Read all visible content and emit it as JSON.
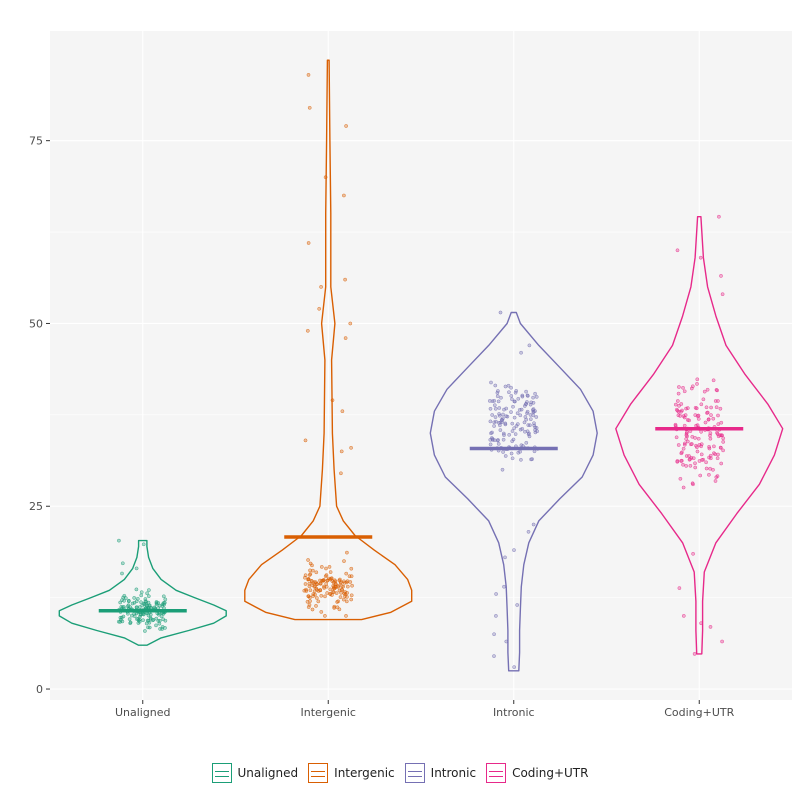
{
  "chart_data": {
    "type": "violin",
    "categories": [
      "Unaligned",
      "Intergenic",
      "Intronic",
      "Coding+UTR"
    ],
    "colors": [
      "#1b9e77",
      "#d95f02",
      "#7570b3",
      "#e7298a"
    ],
    "yticks": [
      0,
      25,
      50,
      75
    ],
    "ylim": [
      -1.5,
      90
    ],
    "series": [
      {
        "name": "Unaligned",
        "median": 10.7,
        "min": 6.0,
        "max": 20.3,
        "density": [
          [
            6.0,
            0.05
          ],
          [
            7.0,
            0.22
          ],
          [
            8.0,
            0.55
          ],
          [
            9.0,
            0.85
          ],
          [
            10.0,
            1.0
          ],
          [
            10.7,
            1.0
          ],
          [
            11.5,
            0.85
          ],
          [
            12.5,
            0.62
          ],
          [
            13.5,
            0.4
          ],
          [
            15.0,
            0.22
          ],
          [
            16.5,
            0.12
          ],
          [
            18.0,
            0.07
          ],
          [
            19.5,
            0.05
          ],
          [
            20.3,
            0.05
          ]
        ]
      },
      {
        "name": "Intergenic",
        "median": 20.8,
        "min": 9.5,
        "max": 86.0,
        "density": [
          [
            9.5,
            0.4
          ],
          [
            10.5,
            0.75
          ],
          [
            12.0,
            1.0
          ],
          [
            13.5,
            1.0
          ],
          [
            15.0,
            0.95
          ],
          [
            17.0,
            0.8
          ],
          [
            19.0,
            0.55
          ],
          [
            21.0,
            0.32
          ],
          [
            23.0,
            0.18
          ],
          [
            25.0,
            0.1
          ],
          [
            30.0,
            0.07
          ],
          [
            35.0,
            0.05
          ],
          [
            45.0,
            0.04
          ],
          [
            50.0,
            0.08
          ],
          [
            55.0,
            0.03
          ],
          [
            65.0,
            0.03
          ],
          [
            75.0,
            0.02
          ],
          [
            86.0,
            0.01
          ]
        ]
      },
      {
        "name": "Intronic",
        "median": 32.9,
        "min": 2.5,
        "max": 51.5,
        "density": [
          [
            2.5,
            0.06
          ],
          [
            5.0,
            0.07
          ],
          [
            8.0,
            0.07
          ],
          [
            11.0,
            0.08
          ],
          [
            14.0,
            0.09
          ],
          [
            17.0,
            0.12
          ],
          [
            20.0,
            0.18
          ],
          [
            23.0,
            0.3
          ],
          [
            26.0,
            0.55
          ],
          [
            29.0,
            0.82
          ],
          [
            32.0,
            0.95
          ],
          [
            35.0,
            1.0
          ],
          [
            38.0,
            0.95
          ],
          [
            41.0,
            0.8
          ],
          [
            44.0,
            0.55
          ],
          [
            47.0,
            0.3
          ],
          [
            50.0,
            0.08
          ],
          [
            51.5,
            0.03
          ]
        ]
      },
      {
        "name": "Coding+UTR",
        "median": 35.6,
        "min": 4.8,
        "max": 64.6,
        "density": [
          [
            4.8,
            0.03
          ],
          [
            8.0,
            0.04
          ],
          [
            12.0,
            0.04
          ],
          [
            16.0,
            0.06
          ],
          [
            20.0,
            0.2
          ],
          [
            24.0,
            0.45
          ],
          [
            28.0,
            0.72
          ],
          [
            32.0,
            0.9
          ],
          [
            35.6,
            1.0
          ],
          [
            39.0,
            0.82
          ],
          [
            43.0,
            0.55
          ],
          [
            47.0,
            0.32
          ],
          [
            51.0,
            0.2
          ],
          [
            55.0,
            0.1
          ],
          [
            59.0,
            0.05
          ],
          [
            64.6,
            0.02
          ]
        ]
      }
    ],
    "points": [
      {
        "lo": 6.0,
        "hi": 20.0,
        "center": 10.7,
        "spread": 3.0,
        "n": 150,
        "extra": [
          20.3,
          19.8,
          17.2,
          16.5,
          15.8
        ]
      },
      {
        "lo": 10.0,
        "hi": 25.0,
        "center": 14.0,
        "spread": 4.0,
        "n": 140,
        "extra": [
          84.0,
          79.5,
          77.0,
          70.0,
          67.5,
          61.0,
          56.0,
          55.0,
          52.0,
          50.0,
          49.0,
          48.0,
          39.5,
          38.0,
          34.0,
          33.0,
          32.5,
          29.5
        ]
      },
      {
        "lo": 3.0,
        "hi": 51.5,
        "center": 36.0,
        "spread": 7.0,
        "n": 150,
        "extra": [
          3.0,
          4.5,
          6.5,
          7.5,
          10.0,
          11.5,
          13.0,
          14.0,
          18.0,
          19.0,
          21.5,
          22.5,
          51.5,
          47.0,
          46.0
        ]
      },
      {
        "lo": 5.0,
        "hi": 64.6,
        "center": 35.0,
        "spread": 8.0,
        "n": 160,
        "extra": [
          4.8,
          6.5,
          8.5,
          9.0,
          10.0,
          13.8,
          18.5,
          59.0,
          60.0,
          64.6,
          56.5,
          54.0
        ]
      }
    ]
  },
  "legend": {
    "items": [
      {
        "label": "Unaligned",
        "color": "#1b9e77"
      },
      {
        "label": "Intergenic",
        "color": "#d95f02"
      },
      {
        "label": "Intronic",
        "color": "#7570b3"
      },
      {
        "label": "Coding+UTR",
        "color": "#e7298a"
      }
    ]
  }
}
